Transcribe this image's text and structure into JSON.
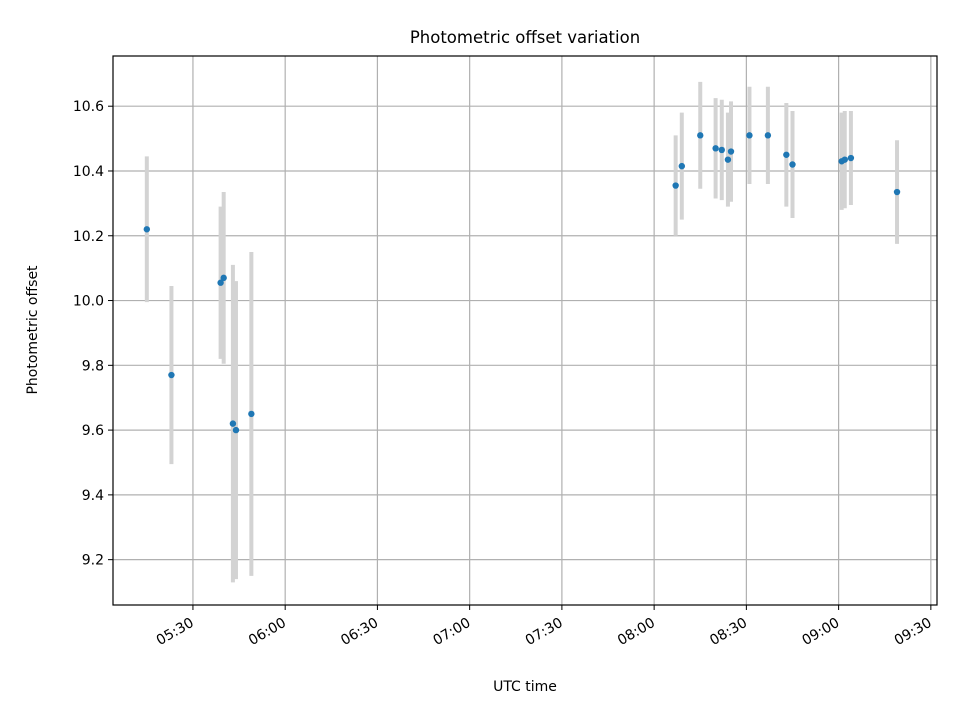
{
  "chart_data": {
    "type": "scatter",
    "title": "Photometric offset variation",
    "xlabel": "UTC time",
    "ylabel": "Photometric offset",
    "xlim": [
      "05:04",
      "09:32"
    ],
    "ylim": [
      9.06,
      10.755
    ],
    "x_ticks": [
      "05:30",
      "06:00",
      "06:30",
      "07:00",
      "07:30",
      "08:00",
      "08:30",
      "09:00",
      "09:30"
    ],
    "y_ticks": [
      "9.2",
      "9.4",
      "9.6",
      "9.8",
      "10.0",
      "10.2",
      "10.4",
      "10.6"
    ],
    "grid": true,
    "point_color": "#1f77b4",
    "errorbar_color": "#d3d3d3",
    "points": [
      {
        "x": "05:15",
        "y": 10.22,
        "err": 0.225
      },
      {
        "x": "05:23",
        "y": 9.77,
        "err": 0.275
      },
      {
        "x": "05:39",
        "y": 10.055,
        "err": 0.235
      },
      {
        "x": "05:40",
        "y": 10.07,
        "err": 0.265
      },
      {
        "x": "05:43",
        "y": 9.62,
        "err": 0.49
      },
      {
        "x": "05:44",
        "y": 9.6,
        "err": 0.46
      },
      {
        "x": "05:49",
        "y": 9.65,
        "err": 0.5
      },
      {
        "x": "08:07",
        "y": 10.355,
        "err": 0.155
      },
      {
        "x": "08:09",
        "y": 10.415,
        "err": 0.165
      },
      {
        "x": "08:15",
        "y": 10.51,
        "err": 0.165
      },
      {
        "x": "08:20",
        "y": 10.47,
        "err": 0.155
      },
      {
        "x": "08:22",
        "y": 10.465,
        "err": 0.155
      },
      {
        "x": "08:24",
        "y": 10.435,
        "err": 0.145
      },
      {
        "x": "08:25",
        "y": 10.46,
        "err": 0.155
      },
      {
        "x": "08:31",
        "y": 10.51,
        "err": 0.15
      },
      {
        "x": "08:37",
        "y": 10.51,
        "err": 0.15
      },
      {
        "x": "08:43",
        "y": 10.45,
        "err": 0.16
      },
      {
        "x": "08:45",
        "y": 10.42,
        "err": 0.165
      },
      {
        "x": "09:01",
        "y": 10.43,
        "err": 0.15
      },
      {
        "x": "09:02",
        "y": 10.435,
        "err": 0.15
      },
      {
        "x": "09:04",
        "y": 10.44,
        "err": 0.145
      },
      {
        "x": "09:19",
        "y": 10.335,
        "err": 0.16
      }
    ]
  }
}
